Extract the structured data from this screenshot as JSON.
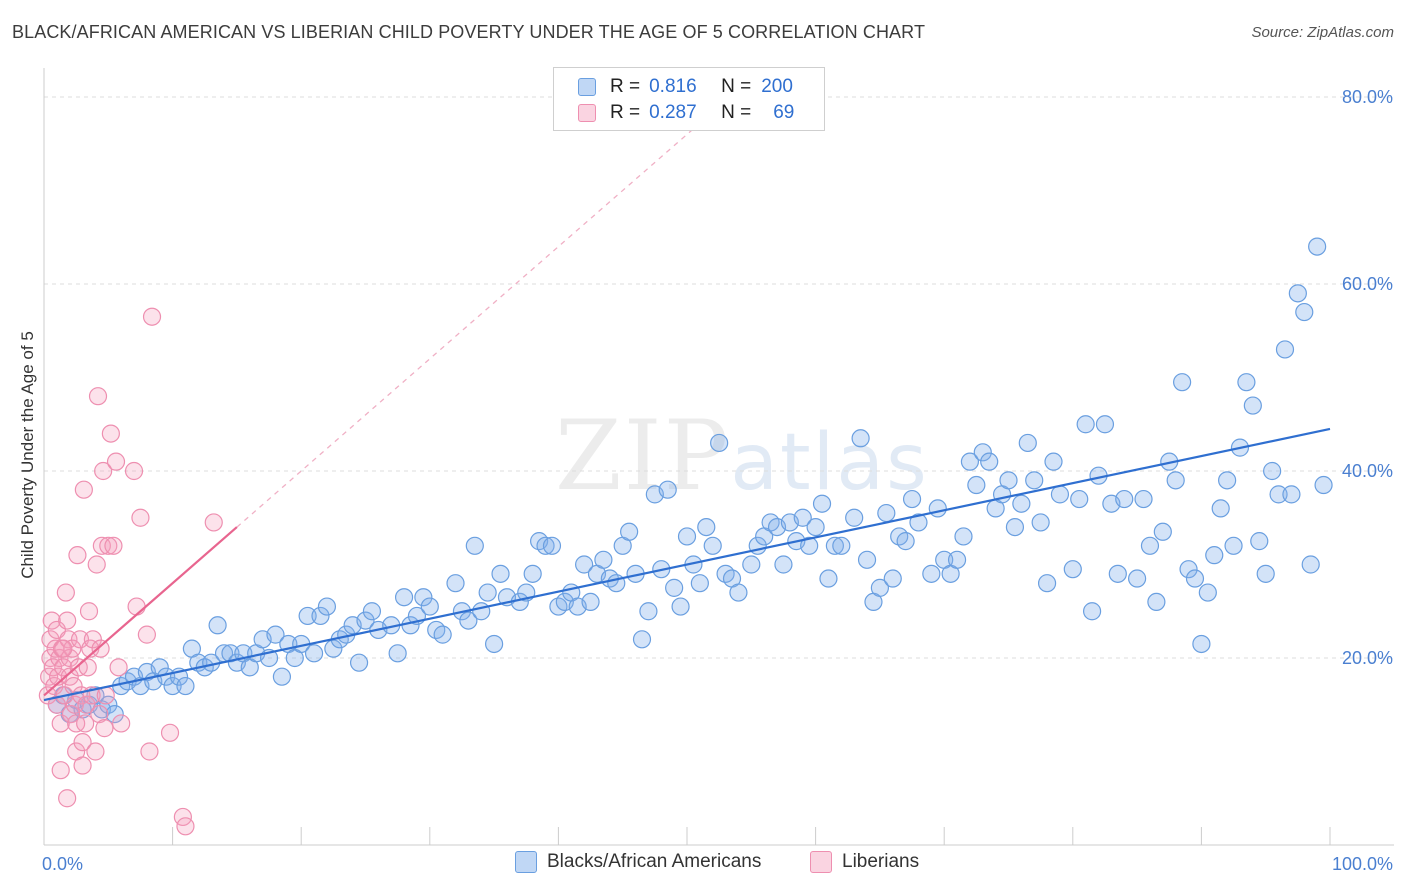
{
  "header": {
    "title": "BLACK/AFRICAN AMERICAN VS LIBERIAN CHILD POVERTY UNDER THE AGE OF 5 CORRELATION CHART",
    "source": "Source: ZipAtlas.com"
  },
  "watermark": {
    "zip": "ZIP",
    "atlas": "atlas"
  },
  "colors": {
    "blue": "#6a9fe0",
    "blue_fill": "rgba(130,175,235,0.35)",
    "blue_line": "#2f6fd0",
    "pink": "#ee8fb0",
    "pink_fill": "rgba(245,160,190,0.30)",
    "pink_line": "#e8658f",
    "axis_text": "#4a7fd0",
    "grid": "#dddddd"
  },
  "legend": {
    "rows": [
      {
        "r_label": "R =",
        "r_value": "0.816",
        "n_label": "N =",
        "n_value": "200",
        "color": "blue"
      },
      {
        "r_label": "R =",
        "r_value": "0.287",
        "n_label": "N =",
        "n_value": "69",
        "color": "pink"
      }
    ]
  },
  "chart_data": {
    "type": "scatter",
    "title": "BLACK/AFRICAN AMERICAN VS LIBERIAN CHILD POVERTY UNDER THE AGE OF 5 CORRELATION CHART",
    "xlabel": "",
    "ylabel": "Child Poverty Under the Age of 5",
    "xlim": [
      0,
      100
    ],
    "ylim": [
      0,
      80
    ],
    "x_tick_labels": [
      "0.0%",
      "100.0%"
    ],
    "y_tick_labels": [
      "20.0%",
      "40.0%",
      "60.0%",
      "80.0%"
    ],
    "y_ticks": [
      20,
      40,
      60,
      80
    ],
    "grid": true,
    "legend_position": "bottom-center",
    "series": [
      {
        "name": "Blacks/African Americans",
        "color": "blue",
        "trend": {
          "x": [
            0,
            100
          ],
          "y": [
            15.5,
            44.5
          ],
          "style": "solid"
        },
        "points": [
          [
            1,
            15
          ],
          [
            1.5,
            16
          ],
          [
            2,
            14
          ],
          [
            2.5,
            15.5
          ],
          [
            3,
            14.5
          ],
          [
            3.5,
            15
          ],
          [
            4,
            16
          ],
          [
            4.5,
            14.5
          ],
          [
            5,
            15
          ],
          [
            5.5,
            14
          ],
          [
            6,
            17
          ],
          [
            6.5,
            17.5
          ],
          [
            7,
            18
          ],
          [
            7.5,
            17
          ],
          [
            8,
            18.5
          ],
          [
            8.5,
            17.5
          ],
          [
            9,
            19
          ],
          [
            9.5,
            18
          ],
          [
            10,
            17
          ],
          [
            10.5,
            18
          ],
          [
            11,
            17
          ],
          [
            11.5,
            21
          ],
          [
            12,
            19.5
          ],
          [
            12.5,
            19
          ],
          [
            13,
            19.5
          ],
          [
            13.5,
            23.5
          ],
          [
            14,
            20.5
          ],
          [
            14.5,
            20.5
          ],
          [
            15,
            19.5
          ],
          [
            15.5,
            20.5
          ],
          [
            16,
            19
          ],
          [
            16.5,
            20.5
          ],
          [
            17,
            22
          ],
          [
            17.5,
            20
          ],
          [
            18,
            22.5
          ],
          [
            18.5,
            18
          ],
          [
            19,
            21.5
          ],
          [
            19.5,
            20
          ],
          [
            20,
            21.5
          ],
          [
            20.5,
            24.5
          ],
          [
            21,
            20.5
          ],
          [
            21.5,
            24.5
          ],
          [
            22,
            25.5
          ],
          [
            22.5,
            21
          ],
          [
            23,
            22
          ],
          [
            23.5,
            22.5
          ],
          [
            24,
            23.5
          ],
          [
            24.5,
            19.5
          ],
          [
            25,
            24
          ],
          [
            25.5,
            25
          ],
          [
            26,
            23
          ],
          [
            27,
            23.5
          ],
          [
            27.5,
            20.5
          ],
          [
            28,
            26.5
          ],
          [
            28.5,
            23.5
          ],
          [
            29,
            24.5
          ],
          [
            29.5,
            26.5
          ],
          [
            30,
            25.5
          ],
          [
            30.5,
            23
          ],
          [
            31,
            22.5
          ],
          [
            32,
            28
          ],
          [
            32.5,
            25
          ],
          [
            33,
            24
          ],
          [
            33.5,
            32
          ],
          [
            34,
            25
          ],
          [
            34.5,
            27
          ],
          [
            35,
            21.5
          ],
          [
            35.5,
            29
          ],
          [
            36,
            26.5
          ],
          [
            37,
            26
          ],
          [
            37.5,
            27
          ],
          [
            38,
            29
          ],
          [
            38.5,
            32.5
          ],
          [
            39,
            32
          ],
          [
            39.5,
            32
          ],
          [
            40,
            25.5
          ],
          [
            40.5,
            26
          ],
          [
            41,
            27
          ],
          [
            41.5,
            25.5
          ],
          [
            42,
            30
          ],
          [
            42.5,
            26
          ],
          [
            43,
            29
          ],
          [
            43.5,
            30.5
          ],
          [
            44,
            28.5
          ],
          [
            44.5,
            28
          ],
          [
            45,
            32
          ],
          [
            45.5,
            33.5
          ],
          [
            46,
            29
          ],
          [
            46.5,
            22
          ],
          [
            47,
            25
          ],
          [
            47.5,
            37.5
          ],
          [
            48,
            29.5
          ],
          [
            48.5,
            38
          ],
          [
            49,
            27.5
          ],
          [
            49.5,
            25.5
          ],
          [
            50,
            33
          ],
          [
            50.5,
            30
          ],
          [
            51,
            28
          ],
          [
            51.5,
            34
          ],
          [
            52,
            32
          ],
          [
            52.5,
            43
          ],
          [
            53,
            29
          ],
          [
            53.5,
            28.5
          ],
          [
            54,
            27
          ],
          [
            55,
            30
          ],
          [
            55.5,
            32
          ],
          [
            56,
            33
          ],
          [
            56.5,
            34.5
          ],
          [
            57,
            34
          ],
          [
            57.5,
            30
          ],
          [
            58,
            34.5
          ],
          [
            58.5,
            32.5
          ],
          [
            59,
            35
          ],
          [
            59.5,
            32
          ],
          [
            60,
            34
          ],
          [
            60.5,
            36.5
          ],
          [
            61,
            28.5
          ],
          [
            61.5,
            32
          ],
          [
            62,
            32
          ],
          [
            63,
            35
          ],
          [
            63.5,
            43.5
          ],
          [
            64,
            30.5
          ],
          [
            64.5,
            26
          ],
          [
            65,
            27.5
          ],
          [
            65.5,
            35.5
          ],
          [
            66,
            28.5
          ],
          [
            66.5,
            33
          ],
          [
            67,
            32.5
          ],
          [
            67.5,
            37
          ],
          [
            68,
            34.5
          ],
          [
            69,
            29
          ],
          [
            69.5,
            36
          ],
          [
            70,
            30.5
          ],
          [
            70.5,
            29
          ],
          [
            71,
            30.5
          ],
          [
            71.5,
            33
          ],
          [
            72,
            41
          ],
          [
            72.5,
            38.5
          ],
          [
            73,
            42
          ],
          [
            73.5,
            41
          ],
          [
            74,
            36
          ],
          [
            74.5,
            37.5
          ],
          [
            75,
            39
          ],
          [
            75.5,
            34
          ],
          [
            76,
            36.5
          ],
          [
            76.5,
            43
          ],
          [
            77,
            39
          ],
          [
            77.5,
            34.5
          ],
          [
            78,
            28
          ],
          [
            78.5,
            41
          ],
          [
            79,
            37.5
          ],
          [
            80,
            29.5
          ],
          [
            80.5,
            37
          ],
          [
            81,
            45
          ],
          [
            81.5,
            25
          ],
          [
            82,
            39.5
          ],
          [
            82.5,
            45
          ],
          [
            83,
            36.5
          ],
          [
            83.5,
            29
          ],
          [
            84,
            37
          ],
          [
            85,
            28.5
          ],
          [
            85.5,
            37
          ],
          [
            86,
            32
          ],
          [
            86.5,
            26
          ],
          [
            87,
            33.5
          ],
          [
            87.5,
            41
          ],
          [
            88,
            39
          ],
          [
            88.5,
            49.5
          ],
          [
            89,
            29.5
          ],
          [
            89.5,
            28.5
          ],
          [
            90,
            21.5
          ],
          [
            90.5,
            27
          ],
          [
            91,
            31
          ],
          [
            91.5,
            36
          ],
          [
            92,
            39
          ],
          [
            92.5,
            32
          ],
          [
            93,
            42.5
          ],
          [
            93.5,
            49.5
          ],
          [
            94,
            47
          ],
          [
            94.5,
            32.5
          ],
          [
            95,
            29
          ],
          [
            95.5,
            40
          ],
          [
            96,
            37.5
          ],
          [
            96.5,
            53
          ],
          [
            97,
            37.5
          ],
          [
            97.5,
            59
          ],
          [
            98,
            57
          ],
          [
            98.5,
            30
          ],
          [
            99,
            64
          ],
          [
            99.5,
            38.5
          ]
        ]
      },
      {
        "name": "Liberians",
        "color": "pink",
        "trend": {
          "x": [
            0,
            15
          ],
          "y": [
            16,
            34
          ],
          "style": "solid",
          "extension": {
            "x": [
              15,
              55
            ],
            "y": [
              34,
              82
            ],
            "style": "dashed"
          }
        },
        "points": [
          [
            0.3,
            16
          ],
          [
            0.4,
            18
          ],
          [
            0.5,
            20
          ],
          [
            0.5,
            22
          ],
          [
            0.6,
            24
          ],
          [
            0.7,
            19
          ],
          [
            0.8,
            17
          ],
          [
            0.9,
            21
          ],
          [
            1,
            23
          ],
          [
            1,
            15
          ],
          [
            1.1,
            18
          ],
          [
            1.2,
            20
          ],
          [
            1.3,
            13
          ],
          [
            1.3,
            8
          ],
          [
            1.4,
            21
          ],
          [
            1.5,
            19
          ],
          [
            1.6,
            16
          ],
          [
            1.7,
            27
          ],
          [
            1.8,
            24
          ],
          [
            1.8,
            5
          ],
          [
            1.9,
            22
          ],
          [
            2,
            20
          ],
          [
            2,
            18
          ],
          [
            2.1,
            14
          ],
          [
            2.2,
            21
          ],
          [
            2.3,
            17
          ],
          [
            2.4,
            15
          ],
          [
            2.5,
            13
          ],
          [
            2.5,
            10
          ],
          [
            2.6,
            31
          ],
          [
            2.7,
            19
          ],
          [
            2.8,
            22
          ],
          [
            2.9,
            16
          ],
          [
            3,
            11
          ],
          [
            3,
            8.5
          ],
          [
            3.1,
            38
          ],
          [
            3.2,
            13
          ],
          [
            3.3,
            15
          ],
          [
            3.4,
            19
          ],
          [
            3.5,
            25
          ],
          [
            3.6,
            21
          ],
          [
            3.7,
            16
          ],
          [
            3.8,
            22
          ],
          [
            4,
            10
          ],
          [
            4.1,
            30
          ],
          [
            4.2,
            48
          ],
          [
            4.3,
            14
          ],
          [
            4.4,
            21
          ],
          [
            4.5,
            32
          ],
          [
            4.6,
            40
          ],
          [
            4.7,
            12.5
          ],
          [
            4.8,
            16
          ],
          [
            5,
            32
          ],
          [
            5.2,
            44
          ],
          [
            5.4,
            32
          ],
          [
            5.6,
            41
          ],
          [
            5.8,
            19
          ],
          [
            6,
            13
          ],
          [
            7,
            40
          ],
          [
            7.2,
            25.5
          ],
          [
            7.5,
            35
          ],
          [
            8,
            22.5
          ],
          [
            8.2,
            10
          ],
          [
            8.4,
            56.5
          ],
          [
            9.8,
            12
          ],
          [
            10.8,
            3
          ],
          [
            11,
            2
          ],
          [
            13.2,
            34.5
          ],
          [
            1.5,
            21
          ]
        ]
      }
    ]
  },
  "bottom_legend": [
    {
      "label": "Blacks/African Americans",
      "color": "blue"
    },
    {
      "label": "Liberians",
      "color": "pink"
    }
  ]
}
